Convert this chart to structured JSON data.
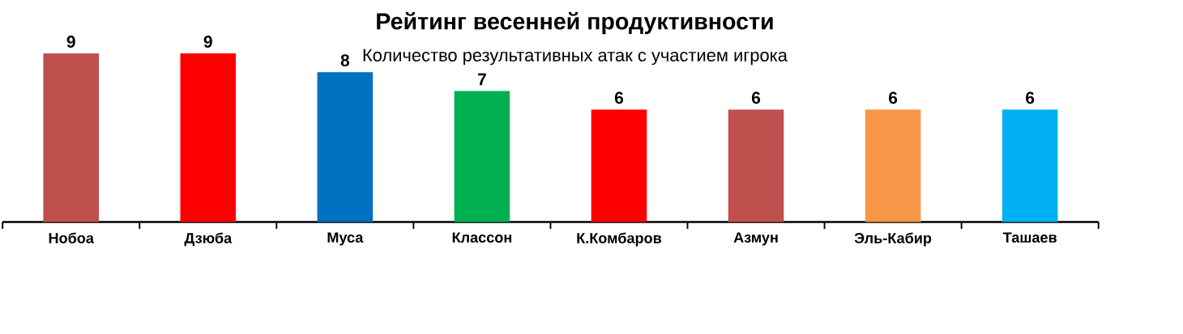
{
  "chart_data": {
    "type": "bar",
    "title": "Рейтинг весенней продуктивности",
    "subtitle": "Количество результативных атак с участием игрока",
    "categories": [
      "Нобоа",
      "Дзюба",
      "Муса",
      "Классон",
      "К.Комбаров",
      "Азмун",
      "Эль-Кабир",
      "Ташаев"
    ],
    "values": [
      9,
      9,
      8,
      7,
      6,
      6,
      6,
      6
    ],
    "colors": [
      "#c0504d",
      "#ff0000",
      "#0070c0",
      "#00b050",
      "#ff0000",
      "#c0504d",
      "#f79646",
      "#00b0f0"
    ],
    "data_labels": true
  }
}
